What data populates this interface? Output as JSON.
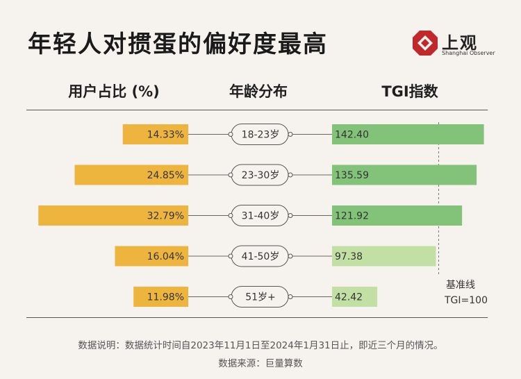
{
  "title": "年轻人对掼蛋的偏好度最高",
  "logo": {
    "name": "上观",
    "subtitle": "Shanghai Observer",
    "color": "#c0292b"
  },
  "headers": {
    "share": "用户占比 (%)",
    "age": "年龄分布",
    "tgi": "TGI指数"
  },
  "chart_data": {
    "type": "bar",
    "categories": [
      "18-23岁",
      "23-30岁",
      "31-40岁",
      "41-50岁",
      "51岁+"
    ],
    "series": [
      {
        "name": "用户占比 (%)",
        "values": [
          14.33,
          24.85,
          32.79,
          16.04,
          11.98
        ],
        "labels": [
          "14.33%",
          "24.85%",
          "32.79%",
          "16.04%",
          "11.98%"
        ]
      },
      {
        "name": "TGI指数",
        "values": [
          142.4,
          135.59,
          121.92,
          97.38,
          42.42
        ],
        "labels": [
          "142.40",
          "135.59",
          "121.92",
          "97.38",
          "42.42"
        ]
      }
    ],
    "reference_line": {
      "value": 100,
      "label_line1": "基准线",
      "label_line2": "TGI=100"
    },
    "colors": {
      "share": "#eeb53e",
      "tgi_high": "#82c279",
      "tgi_low": "#c2e0a4",
      "bg": "#f6f3ee"
    }
  },
  "footer": {
    "note": "数据说明：数据统计时间自2023年11月1日至2024年1月31日止，即近三个月的情况。",
    "source": "数据来源：巨量算数"
  }
}
